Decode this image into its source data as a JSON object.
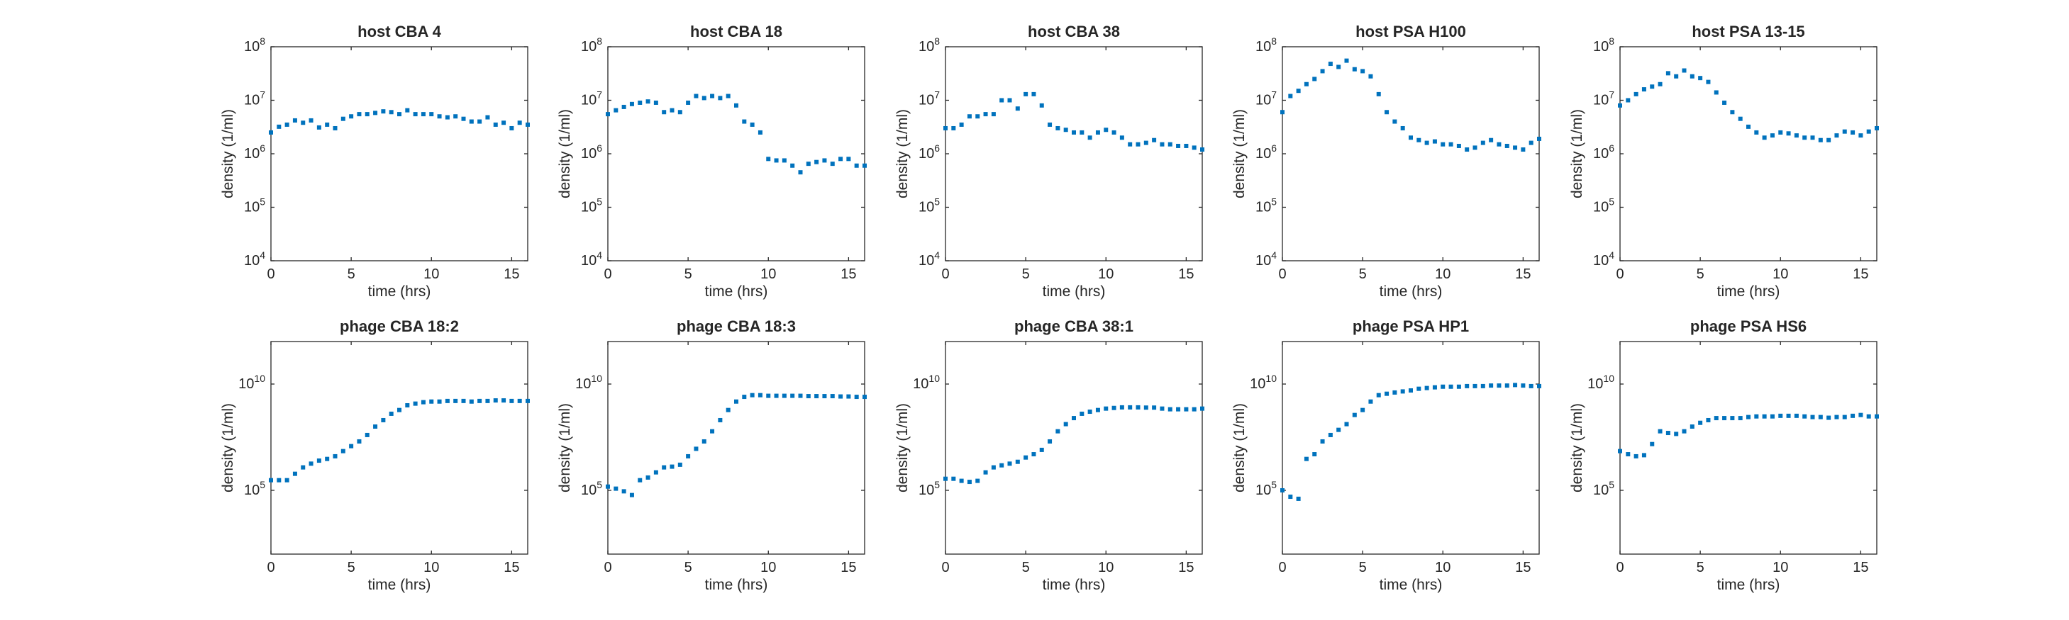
{
  "figure": {
    "background": "#ffffff",
    "marker_color": "#0072BD",
    "axis_color": "#262626"
  },
  "chart_data": [
    {
      "type": "scatter",
      "title": "host CBA 4",
      "xlabel": "time (hrs)",
      "ylabel": "density (1/ml)",
      "xlim": [
        0,
        16
      ],
      "ylim": [
        10000,
        100000000
      ],
      "yscale": "log",
      "xticks": [
        0,
        5,
        10,
        15
      ],
      "yticks": [
        4,
        5,
        6,
        7,
        8
      ],
      "grid": false,
      "series": [
        {
          "x": [
            0,
            0.5,
            1,
            1.5,
            2,
            2.5,
            3,
            3.5,
            4,
            4.5,
            5,
            5.5,
            6,
            6.5,
            7,
            7.5,
            8,
            8.5,
            9,
            9.5,
            10,
            10.5,
            11,
            11.5,
            12,
            12.5,
            13,
            13.5,
            14,
            14.5,
            15,
            15.5,
            16
          ],
          "y": [
            2500000.0,
            3200000.0,
            3500000.0,
            4200000.0,
            3800000.0,
            4200000.0,
            3100000.0,
            3500000.0,
            3000000.0,
            4500000.0,
            5000000.0,
            5500000.0,
            5500000.0,
            5800000.0,
            6200000.0,
            6000000.0,
            5500000.0,
            6500000.0,
            5500000.0,
            5500000.0,
            5500000.0,
            5000000.0,
            4800000.0,
            5000000.0,
            4500000.0,
            4000000.0,
            4000000.0,
            4800000.0,
            3500000.0,
            3800000.0,
            3000000.0,
            3800000.0,
            3500000.0
          ]
        }
      ]
    },
    {
      "type": "scatter",
      "title": "host CBA 18",
      "xlabel": "time (hrs)",
      "ylabel": "density (1/ml)",
      "xlim": [
        0,
        16
      ],
      "ylim": [
        10000,
        100000000
      ],
      "yscale": "log",
      "xticks": [
        0,
        5,
        10,
        15
      ],
      "yticks": [
        4,
        5,
        6,
        7,
        8
      ],
      "grid": false,
      "series": [
        {
          "x": [
            0,
            0.5,
            1,
            1.5,
            2,
            2.5,
            3,
            3.5,
            4,
            4.5,
            5,
            5.5,
            6,
            6.5,
            7,
            7.5,
            8,
            8.5,
            9,
            9.5,
            10,
            10.5,
            11,
            11.5,
            12,
            12.5,
            13,
            13.5,
            14,
            14.5,
            15,
            15.5,
            16
          ],
          "y": [
            5500000.0,
            6500000.0,
            7500000.0,
            8500000.0,
            9000000.0,
            9500000.0,
            9000000.0,
            6000000.0,
            6500000.0,
            6000000.0,
            9000000.0,
            12000000.0,
            11000000.0,
            12000000.0,
            11000000.0,
            12000000.0,
            8000000.0,
            4000000.0,
            3500000.0,
            2500000.0,
            800000.0,
            750000.0,
            750000.0,
            600000.0,
            450000.0,
            650000.0,
            700000.0,
            750000.0,
            650000.0,
            800000.0,
            800000.0,
            600000.0,
            600000.0
          ]
        }
      ]
    },
    {
      "type": "scatter",
      "title": "host CBA 38",
      "xlabel": "time (hrs)",
      "ylabel": "density (1/ml)",
      "xlim": [
        0,
        16
      ],
      "ylim": [
        10000,
        100000000
      ],
      "yscale": "log",
      "xticks": [
        0,
        5,
        10,
        15
      ],
      "yticks": [
        4,
        5,
        6,
        7,
        8
      ],
      "grid": false,
      "series": [
        {
          "x": [
            0,
            0.5,
            1,
            1.5,
            2,
            2.5,
            3,
            3.5,
            4,
            4.5,
            5,
            5.5,
            6,
            6.5,
            7,
            7.5,
            8,
            8.5,
            9,
            9.5,
            10,
            10.5,
            11,
            11.5,
            12,
            12.5,
            13,
            13.5,
            14,
            14.5,
            15,
            15.5,
            16
          ],
          "y": [
            3000000.0,
            3000000.0,
            3500000.0,
            5000000.0,
            5000000.0,
            5500000.0,
            5500000.0,
            10000000.0,
            10000000.0,
            7000000.0,
            13000000.0,
            13000000.0,
            8000000.0,
            3500000.0,
            3000000.0,
            2800000.0,
            2500000.0,
            2500000.0,
            2000000.0,
            2500000.0,
            2800000.0,
            2500000.0,
            2000000.0,
            1500000.0,
            1500000.0,
            1600000.0,
            1800000.0,
            1500000.0,
            1500000.0,
            1400000.0,
            1400000.0,
            1300000.0,
            1200000.0
          ]
        }
      ]
    },
    {
      "type": "scatter",
      "title": "host PSA H100",
      "xlabel": "time (hrs)",
      "ylabel": "density (1/ml)",
      "xlim": [
        0,
        16
      ],
      "ylim": [
        10000,
        100000000
      ],
      "yscale": "log",
      "xticks": [
        0,
        5,
        10,
        15
      ],
      "yticks": [
        4,
        5,
        6,
        7,
        8
      ],
      "grid": false,
      "series": [
        {
          "x": [
            0,
            0.5,
            1,
            1.5,
            2,
            2.5,
            3,
            3.5,
            4,
            4.5,
            5,
            5.5,
            6,
            6.5,
            7,
            7.5,
            8,
            8.5,
            9,
            9.5,
            10,
            10.5,
            11,
            11.5,
            12,
            12.5,
            13,
            13.5,
            14,
            14.5,
            15,
            15.5,
            16
          ],
          "y": [
            6000000.0,
            12000000.0,
            15000000.0,
            20000000.0,
            25000000.0,
            35000000.0,
            48000000.0,
            42000000.0,
            55000000.0,
            38000000.0,
            35000000.0,
            28000000.0,
            13000000.0,
            6000000.0,
            4000000.0,
            3000000.0,
            2000000.0,
            1800000.0,
            1600000.0,
            1700000.0,
            1500000.0,
            1500000.0,
            1400000.0,
            1200000.0,
            1300000.0,
            1600000.0,
            1800000.0,
            1500000.0,
            1400000.0,
            1300000.0,
            1200000.0,
            1600000.0,
            1900000.0
          ]
        }
      ]
    },
    {
      "type": "scatter",
      "title": "host PSA 13-15",
      "xlabel": "time (hrs)",
      "ylabel": "density (1/ml)",
      "xlim": [
        0,
        16
      ],
      "ylim": [
        10000,
        100000000
      ],
      "yscale": "log",
      "xticks": [
        0,
        5,
        10,
        15
      ],
      "yticks": [
        4,
        5,
        6,
        7,
        8
      ],
      "grid": false,
      "series": [
        {
          "x": [
            0,
            0.5,
            1,
            1.5,
            2,
            2.5,
            3,
            3.5,
            4,
            4.5,
            5,
            5.5,
            6,
            6.5,
            7,
            7.5,
            8,
            8.5,
            9,
            9.5,
            10,
            10.5,
            11,
            11.5,
            12,
            12.5,
            13,
            13.5,
            14,
            14.5,
            15,
            15.5,
            16
          ],
          "y": [
            8000000.0,
            10000000.0,
            13000000.0,
            16000000.0,
            18000000.0,
            20000000.0,
            32000000.0,
            28000000.0,
            36000000.0,
            28000000.0,
            26000000.0,
            22000000.0,
            14000000.0,
            9000000.0,
            6000000.0,
            4500000.0,
            3200000.0,
            2500000.0,
            2000000.0,
            2200000.0,
            2500000.0,
            2400000.0,
            2200000.0,
            2000000.0,
            2000000.0,
            1800000.0,
            1800000.0,
            2200000.0,
            2600000.0,
            2500000.0,
            2200000.0,
            2600000.0,
            3000000.0
          ]
        }
      ]
    },
    {
      "type": "scatter",
      "title": "phage CBA 18:2",
      "xlabel": "time (hrs)",
      "ylabel": "density (1/ml)",
      "xlim": [
        0,
        16
      ],
      "ylim": [
        100,
        1000000000000.0
      ],
      "yscale": "log",
      "xticks": [
        0,
        5,
        10,
        15
      ],
      "yticks": [
        5,
        10
      ],
      "grid": false,
      "series": [
        {
          "x": [
            0,
            0.5,
            1,
            1.5,
            2,
            2.5,
            3,
            3.5,
            4,
            4.5,
            5,
            5.5,
            6,
            6.5,
            7,
            7.5,
            8,
            8.5,
            9,
            9.5,
            10,
            10.5,
            11,
            11.5,
            12,
            12.5,
            13,
            13.5,
            14,
            14.5,
            15,
            15.5,
            16
          ],
          "y": [
            300000.0,
            300000.0,
            300000.0,
            600000.0,
            1200000.0,
            1800000.0,
            2500000.0,
            3000000.0,
            4000000.0,
            7000000.0,
            12000000.0,
            20000000.0,
            40000000.0,
            100000000.0,
            200000000.0,
            400000000.0,
            600000000.0,
            1000000000.0,
            1200000000.0,
            1400000000.0,
            1500000000.0,
            1500000000.0,
            1600000000.0,
            1600000000.0,
            1600000000.0,
            1500000000.0,
            1600000000.0,
            1600000000.0,
            1700000000.0,
            1700000000.0,
            1600000000.0,
            1600000000.0,
            1600000000.0
          ]
        }
      ]
    },
    {
      "type": "scatter",
      "title": "phage CBA 18:3",
      "xlabel": "time (hrs)",
      "ylabel": "density (1/ml)",
      "xlim": [
        0,
        16
      ],
      "ylim": [
        100,
        1000000000000.0
      ],
      "yscale": "log",
      "xticks": [
        0,
        5,
        10,
        15
      ],
      "yticks": [
        5,
        10
      ],
      "grid": false,
      "series": [
        {
          "x": [
            0,
            0.5,
            1,
            1.5,
            2,
            2.5,
            3,
            3.5,
            4,
            4.5,
            5,
            5.5,
            6,
            6.5,
            7,
            7.5,
            8,
            8.5,
            9,
            9.5,
            10,
            10.5,
            11,
            11.5,
            12,
            12.5,
            13,
            13.5,
            14,
            14.5,
            15,
            15.5,
            16
          ],
          "y": [
            150000.0,
            120000.0,
            90000.0,
            60000.0,
            300000.0,
            400000.0,
            700000.0,
            1200000.0,
            1300000.0,
            1600000.0,
            4000000.0,
            9000000.0,
            20000000.0,
            60000000.0,
            200000000.0,
            600000000.0,
            1500000000.0,
            2500000000.0,
            3000000000.0,
            3000000000.0,
            2800000000.0,
            2800000000.0,
            2800000000.0,
            2800000000.0,
            2800000000.0,
            2700000000.0,
            2700000000.0,
            2700000000.0,
            2700000000.0,
            2600000000.0,
            2600000000.0,
            2500000000.0,
            2500000000.0
          ]
        }
      ]
    },
    {
      "type": "scatter",
      "title": "phage CBA 38:1",
      "xlabel": "time (hrs)",
      "ylabel": "density (1/ml)",
      "xlim": [
        0,
        16
      ],
      "ylim": [
        100,
        1000000000000.0
      ],
      "yscale": "log",
      "xticks": [
        0,
        5,
        10,
        15
      ],
      "yticks": [
        5,
        10
      ],
      "grid": false,
      "series": [
        {
          "x": [
            0,
            0.5,
            1,
            1.5,
            2,
            2.5,
            3,
            3.5,
            4,
            4.5,
            5,
            5.5,
            6,
            6.5,
            7,
            7.5,
            8,
            8.5,
            9,
            9.5,
            10,
            10.5,
            11,
            11.5,
            12,
            12.5,
            13,
            13.5,
            14,
            14.5,
            15,
            15.5,
            16
          ],
          "y": [
            350000.0,
            350000.0,
            280000.0,
            250000.0,
            280000.0,
            700000.0,
            1200000.0,
            1500000.0,
            1800000.0,
            2200000.0,
            3500000.0,
            5000000.0,
            8000000.0,
            20000000.0,
            60000000.0,
            130000000.0,
            250000000.0,
            400000000.0,
            500000000.0,
            600000000.0,
            700000000.0,
            750000000.0,
            800000000.0,
            800000000.0,
            800000000.0,
            780000000.0,
            780000000.0,
            700000000.0,
            650000000.0,
            650000000.0,
            650000000.0,
            650000000.0,
            700000000.0
          ]
        }
      ]
    },
    {
      "type": "scatter",
      "title": "phage PSA HP1",
      "xlabel": "time (hrs)",
      "ylabel": "density (1/ml)",
      "xlim": [
        0,
        16
      ],
      "ylim": [
        100,
        1000000000000.0
      ],
      "yscale": "log",
      "xticks": [
        0,
        5,
        10,
        15
      ],
      "yticks": [
        5,
        10
      ],
      "grid": false,
      "series": [
        {
          "x": [
            0,
            0.5,
            1,
            1.5,
            2,
            2.5,
            3,
            3.5,
            4,
            4.5,
            5,
            5.5,
            6,
            6.5,
            7,
            7.5,
            8,
            8.5,
            9,
            9.5,
            10,
            10.5,
            11,
            11.5,
            12,
            12.5,
            13,
            13.5,
            14,
            14.5,
            15,
            15.5,
            16
          ],
          "y": [
            100000.0,
            50000.0,
            40000.0,
            3000000.0,
            5000000.0,
            20000000.0,
            40000000.0,
            70000000.0,
            130000000.0,
            350000000.0,
            600000000.0,
            1500000000.0,
            3000000000.0,
            3500000000.0,
            4000000000.0,
            4500000000.0,
            5000000000.0,
            6000000000.0,
            6500000000.0,
            7000000000.0,
            7500000000.0,
            7500000000.0,
            7500000000.0,
            8000000000.0,
            8000000000.0,
            8000000000.0,
            8500000000.0,
            8500000000.0,
            8500000000.0,
            9000000000.0,
            8500000000.0,
            8000000000.0,
            8000000000.0
          ]
        }
      ]
    },
    {
      "type": "scatter",
      "title": "phage PSA HS6",
      "xlabel": "time (hrs)",
      "ylabel": "density (1/ml)",
      "xlim": [
        0,
        16
      ],
      "ylim": [
        100,
        1000000000000.0
      ],
      "yscale": "log",
      "xticks": [
        0,
        5,
        10,
        15
      ],
      "yticks": [
        5,
        10
      ],
      "grid": false,
      "series": [
        {
          "x": [
            0,
            0.5,
            1,
            1.5,
            2,
            2.5,
            3,
            3.5,
            4,
            4.5,
            5,
            5.5,
            6,
            6.5,
            7,
            7.5,
            8,
            8.5,
            9,
            9.5,
            10,
            10.5,
            11,
            11.5,
            12,
            12.5,
            13,
            13.5,
            14,
            14.5,
            15,
            15.5,
            16
          ],
          "y": [
            7000000.0,
            5000000.0,
            4000000.0,
            4500000.0,
            15000000.0,
            60000000.0,
            50000000.0,
            45000000.0,
            60000000.0,
            100000000.0,
            150000000.0,
            200000000.0,
            250000000.0,
            250000000.0,
            250000000.0,
            250000000.0,
            280000000.0,
            300000000.0,
            300000000.0,
            300000000.0,
            320000000.0,
            320000000.0,
            320000000.0,
            300000000.0,
            280000000.0,
            280000000.0,
            260000000.0,
            280000000.0,
            280000000.0,
            320000000.0,
            350000000.0,
            300000000.0,
            300000000.0
          ]
        }
      ]
    }
  ]
}
